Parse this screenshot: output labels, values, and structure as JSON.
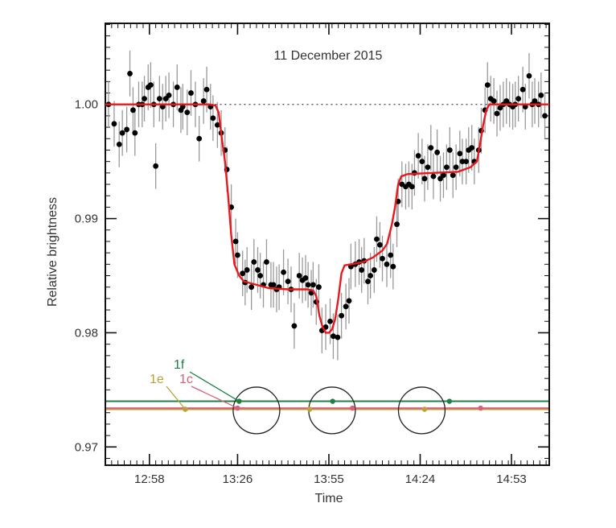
{
  "chart_data": {
    "type": "scatter",
    "title": "11 December 2015",
    "xlabel": "Time",
    "ylabel": "Relative brightness",
    "x_tick_labels": [
      "12:58",
      "13:26",
      "13:55",
      "14:24",
      "14:53"
    ],
    "x_tick_minutes": [
      778,
      806,
      835,
      864,
      893
    ],
    "y_tick_labels": [
      "0.97",
      "0.98",
      "0.99",
      "1.00"
    ],
    "y_ticks": [
      0.97,
      0.98,
      0.99,
      1.0
    ],
    "xlim_minutes": [
      764,
      905
    ],
    "ylim": [
      0.9684,
      1.0071
    ],
    "reference_line": 1.0,
    "colors": {
      "points": "#000000",
      "errorbars": "#999999",
      "model": "#e8191c",
      "reference": "#555555",
      "1f": "#1e7f45",
      "1e": "#b8a23a",
      "1c": "#d9607a"
    },
    "series": [
      {
        "type": "scatter-errorbars",
        "points": [
          [
            765,
            1.0,
            0.002
          ],
          [
            766.8,
            0.9983,
            0.002
          ],
          [
            768.4,
            0.9965,
            0.002
          ],
          [
            769.4,
            0.9975,
            0.002
          ],
          [
            770.8,
            0.9978,
            0.002
          ],
          [
            771.8,
            1.0027,
            0.002
          ],
          [
            772.8,
            0.9995,
            0.002
          ],
          [
            773.4,
            0.9975,
            0.002
          ],
          [
            774.6,
            1.0,
            0.002
          ],
          [
            775.7,
            1.0,
            0.002
          ],
          [
            776.4,
            1.0005,
            0.002
          ],
          [
            777.6,
            1.0015,
            0.002
          ],
          [
            778.4,
            1.0017,
            0.002
          ],
          [
            779.4,
            1.0,
            0.002
          ],
          [
            780.0,
            0.9946,
            0.002
          ],
          [
            781.2,
            1.0005,
            0.002
          ],
          [
            782.2,
            0.9998,
            0.002
          ],
          [
            783.2,
            1.0005,
            0.002
          ],
          [
            784.2,
            1.0008,
            0.002
          ],
          [
            785.6,
            1.0,
            0.002
          ],
          [
            786.8,
            1.0015,
            0.002
          ],
          [
            788.0,
            0.9995,
            0.002
          ],
          [
            788.6,
            0.9998,
            0.002
          ],
          [
            790.0,
            0.9993,
            0.002
          ],
          [
            791.2,
            1.001,
            0.002
          ],
          [
            792.6,
            1.0,
            0.002
          ],
          [
            793.8,
            0.997,
            0.002
          ],
          [
            795.2,
            1.0003,
            0.002
          ],
          [
            796.2,
            1.0013,
            0.002
          ],
          [
            797.4,
            0.9998,
            0.002
          ],
          [
            798.2,
            0.9988,
            0.002
          ],
          [
            799.6,
            0.9982,
            0.002
          ],
          [
            800.8,
            0.9975,
            0.002
          ],
          [
            802.0,
            0.996,
            0.002
          ],
          [
            802.6,
            0.9943,
            0.002
          ],
          [
            804.0,
            0.991,
            0.002
          ],
          [
            805.4,
            0.988,
            0.002
          ],
          [
            806.0,
            0.9868,
            0.002
          ],
          [
            807.6,
            0.9852,
            0.002
          ],
          [
            808.4,
            0.9844,
            0.002
          ],
          [
            809.0,
            0.9855,
            0.002
          ],
          [
            810.4,
            0.984,
            0.002
          ],
          [
            811.2,
            0.9862,
            0.002
          ],
          [
            812.4,
            0.9855,
            0.002
          ],
          [
            813.2,
            0.985,
            0.002
          ],
          [
            814.2,
            0.9842,
            0.002
          ],
          [
            815.2,
            0.9862,
            0.002
          ],
          [
            816.6,
            0.9842,
            0.002
          ],
          [
            817.4,
            0.9842,
            0.002
          ],
          [
            818.4,
            0.9838,
            0.002
          ],
          [
            819.2,
            0.984,
            0.002
          ],
          [
            820.6,
            0.9853,
            0.002
          ],
          [
            822.0,
            0.9845,
            0.002
          ],
          [
            823.0,
            0.9838,
            0.002
          ],
          [
            824.0,
            0.9806,
            0.002
          ],
          [
            825.6,
            0.985,
            0.002
          ],
          [
            826.6,
            0.9846,
            0.002
          ],
          [
            827.6,
            0.9848,
            0.002
          ],
          [
            828.4,
            0.9842,
            0.002
          ],
          [
            829.4,
            0.9835,
            0.002
          ],
          [
            830.0,
            0.9842,
            0.002
          ],
          [
            831.0,
            0.9827,
            0.002
          ],
          [
            831.8,
            0.984,
            0.002
          ],
          [
            832.8,
            0.9802,
            0.002
          ],
          [
            834.0,
            0.9805,
            0.002
          ],
          [
            835.4,
            0.981,
            0.002
          ],
          [
            836.4,
            0.9797,
            0.002
          ],
          [
            837.8,
            0.9796,
            0.002
          ],
          [
            839.0,
            0.9815,
            0.002
          ],
          [
            840.4,
            0.9823,
            0.002
          ],
          [
            841.4,
            0.9828,
            0.002
          ],
          [
            842.0,
            0.9858,
            0.002
          ],
          [
            843.4,
            0.986,
            0.002
          ],
          [
            844.6,
            0.9862,
            0.002
          ],
          [
            845.4,
            0.9855,
            0.002
          ],
          [
            846.2,
            0.9863,
            0.002
          ],
          [
            847.4,
            0.9845,
            0.002
          ],
          [
            848.2,
            0.985,
            0.002
          ],
          [
            849.4,
            0.9855,
            0.002
          ],
          [
            850.2,
            0.9882,
            0.002
          ],
          [
            851.2,
            0.9877,
            0.002
          ],
          [
            852.0,
            0.9865,
            0.002
          ],
          [
            853.4,
            0.986,
            0.002
          ],
          [
            854.6,
            0.9868,
            0.002
          ],
          [
            855.4,
            0.9858,
            0.002
          ],
          [
            856.6,
            0.9895,
            0.002
          ],
          [
            857.0,
            0.9915,
            0.002
          ],
          [
            858.2,
            0.993,
            0.002
          ],
          [
            859.4,
            0.9928,
            0.002
          ],
          [
            860.4,
            0.993,
            0.002
          ],
          [
            861.4,
            0.9928,
            0.002
          ],
          [
            862.2,
            0.994,
            0.002
          ],
          [
            863.4,
            0.9955,
            0.002
          ],
          [
            864.6,
            0.995,
            0.002
          ],
          [
            865.4,
            0.9935,
            0.002
          ],
          [
            866.4,
            0.9945,
            0.002
          ],
          [
            867.4,
            0.9962,
            0.002
          ],
          [
            868.2,
            0.9937,
            0.002
          ],
          [
            869.4,
            0.9958,
            0.002
          ],
          [
            870.4,
            0.9935,
            0.002
          ],
          [
            871.4,
            0.9938,
            0.002
          ],
          [
            872.4,
            0.9945,
            0.002
          ],
          [
            873.4,
            0.996,
            0.002
          ],
          [
            874.4,
            0.9938,
            0.002
          ],
          [
            875.4,
            0.9945,
            0.002
          ],
          [
            876.6,
            0.9957,
            0.002
          ],
          [
            877.4,
            0.995,
            0.002
          ],
          [
            878.6,
            0.995,
            0.002
          ],
          [
            879.4,
            0.996,
            0.002
          ],
          [
            880.4,
            0.9962,
            0.002
          ],
          [
            881.2,
            0.995,
            0.002
          ],
          [
            882.6,
            0.996,
            0.002
          ],
          [
            883.4,
            0.9977,
            0.002
          ],
          [
            884.6,
            0.9995,
            0.002
          ],
          [
            885.4,
            1.0017,
            0.002
          ],
          [
            886.4,
            1.0005,
            0.002
          ],
          [
            887.4,
            1.0003,
            0.002
          ],
          [
            888.4,
            0.9992,
            0.002
          ],
          [
            889.4,
            0.9997,
            0.002
          ],
          [
            890.4,
            1.0,
            0.002
          ],
          [
            891.4,
            1.0003,
            0.002
          ],
          [
            892.4,
            1.0,
            0.002
          ],
          [
            893.4,
            0.9998,
            0.002
          ],
          [
            894.2,
            1.0,
            0.002
          ],
          [
            895.2,
            1.0005,
            0.002
          ],
          [
            896.6,
            1.0013,
            0.002
          ],
          [
            897.4,
            0.9998,
            0.002
          ],
          [
            898.6,
            1.0025,
            0.002
          ],
          [
            899.6,
            1.0,
            0.002
          ],
          [
            900.4,
            1.0003,
            0.002
          ],
          [
            901.6,
            1.0,
            0.002
          ],
          [
            902.4,
            1.0008,
            0.002
          ],
          [
            903.6,
            0.999,
            0.002
          ]
        ]
      },
      {
        "type": "line",
        "points": [
          [
            764,
            1.0
          ],
          [
            797,
            1.0
          ],
          [
            799,
            0.9999
          ],
          [
            800,
            0.9993
          ],
          [
            801,
            0.997
          ],
          [
            802,
            0.995
          ],
          [
            803,
            0.992
          ],
          [
            804,
            0.9885
          ],
          [
            805,
            0.986
          ],
          [
            806.5,
            0.985
          ],
          [
            808,
            0.9845
          ],
          [
            812,
            0.9842
          ],
          [
            816,
            0.9839
          ],
          [
            822,
            0.9838
          ],
          [
            828,
            0.9838
          ],
          [
            830,
            0.9837
          ],
          [
            831,
            0.9832
          ],
          [
            832,
            0.9815
          ],
          [
            833,
            0.9805
          ],
          [
            834,
            0.98
          ],
          [
            835,
            0.98
          ],
          [
            836,
            0.9803
          ],
          [
            837,
            0.9812
          ],
          [
            838,
            0.983
          ],
          [
            839,
            0.9852
          ],
          [
            840,
            0.9859
          ],
          [
            842,
            0.986
          ],
          [
            846,
            0.9862
          ],
          [
            849,
            0.9866
          ],
          [
            852,
            0.9872
          ],
          [
            853.5,
            0.9878
          ],
          [
            855,
            0.9895
          ],
          [
            856,
            0.991
          ],
          [
            857,
            0.993
          ],
          [
            858,
            0.9937
          ],
          [
            860,
            0.9939
          ],
          [
            868,
            0.994
          ],
          [
            876,
            0.9941
          ],
          [
            880,
            0.9945
          ],
          [
            882,
            0.995
          ],
          [
            883,
            0.9965
          ],
          [
            884,
            0.9982
          ],
          [
            885,
            0.9995
          ],
          [
            886,
            1.0
          ],
          [
            905,
            1.0
          ]
        ]
      }
    ],
    "planets": [
      {
        "name": "1f",
        "y": 0.974,
        "moments": [
          806.5,
          836.2,
          873.3
        ]
      },
      {
        "name": "1e",
        "y": 0.9733,
        "moments": [
          789.4,
          828.9,
          865.4
        ]
      },
      {
        "name": "1c",
        "y": 0.9734,
        "moments": [
          806.0,
          842.5,
          883.2
        ]
      }
    ],
    "transit_circles": [
      {
        "x": 812.0,
        "y": 0.9732,
        "r": 7.4
      },
      {
        "x": 836.0,
        "y": 0.9732,
        "r": 7.4
      },
      {
        "x": 864.5,
        "y": 0.9732,
        "r": 7.4
      }
    ],
    "labels": {
      "1f": "1f",
      "1e": "1e",
      "1c": "1c"
    }
  }
}
